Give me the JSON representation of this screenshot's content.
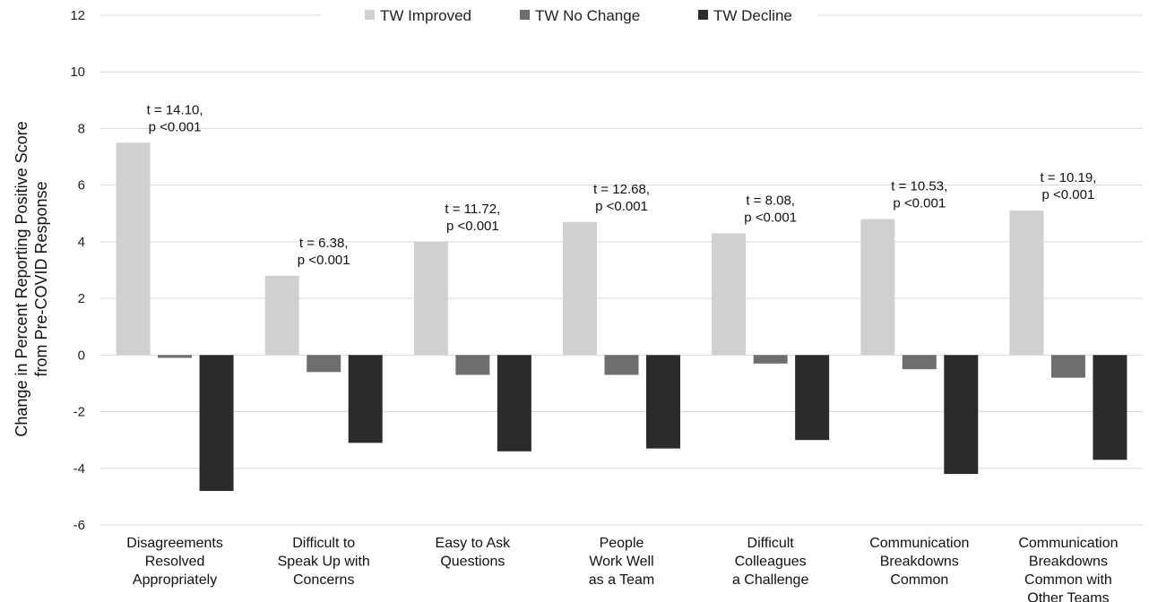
{
  "chart_data": {
    "type": "bar",
    "ylabel": [
      "Change in Percent Reporting Positive Score",
      "from Pre-COVID Response"
    ],
    "ylim": [
      -6,
      12
    ],
    "yticks": [
      -6,
      -4,
      -2,
      0,
      2,
      4,
      6,
      8,
      10,
      12
    ],
    "grid": true,
    "legend_position": "top-center",
    "categories": [
      [
        "Disagreements",
        "Resolved",
        "Appropriately"
      ],
      [
        "Difficult to",
        "Speak Up with",
        "Concerns"
      ],
      [
        "Easy to Ask",
        "Questions"
      ],
      [
        "People",
        "Work Well",
        "as a Team"
      ],
      [
        "Difficult",
        "Colleagues",
        "a Challenge"
      ],
      [
        "Communication",
        "Breakdowns",
        "Common"
      ],
      [
        "Communication",
        "Breakdowns",
        "Common with",
        "Other Teams"
      ]
    ],
    "series": [
      {
        "name": "TW Improved",
        "color": "#d0d0d0",
        "values": [
          7.5,
          2.8,
          4.0,
          4.7,
          4.3,
          4.8,
          5.1
        ]
      },
      {
        "name": "TW No Change",
        "color": "#6e6e6e",
        "values": [
          -0.1,
          -0.6,
          -0.7,
          -0.7,
          -0.3,
          -0.5,
          -0.8
        ]
      },
      {
        "name": "TW Decline",
        "color": "#2b2b2b",
        "values": [
          -4.8,
          -3.1,
          -3.4,
          -3.3,
          -3.0,
          -4.2,
          -3.7
        ]
      }
    ],
    "annotations": [
      {
        "category_index": 0,
        "lines": [
          "t = 14.10,",
          "p <0.001"
        ]
      },
      {
        "category_index": 1,
        "lines": [
          "t = 6.38,",
          "p <0.001"
        ]
      },
      {
        "category_index": 2,
        "lines": [
          "t = 11.72,",
          "p <0.001"
        ]
      },
      {
        "category_index": 3,
        "lines": [
          "t = 12.68,",
          "p <0.001"
        ]
      },
      {
        "category_index": 4,
        "lines": [
          "t = 8.08,",
          "p <0.001"
        ]
      },
      {
        "category_index": 5,
        "lines": [
          "t = 10.53,",
          "p <0.001"
        ]
      },
      {
        "category_index": 6,
        "lines": [
          "t = 10.19,",
          "p <0.001"
        ]
      }
    ]
  }
}
